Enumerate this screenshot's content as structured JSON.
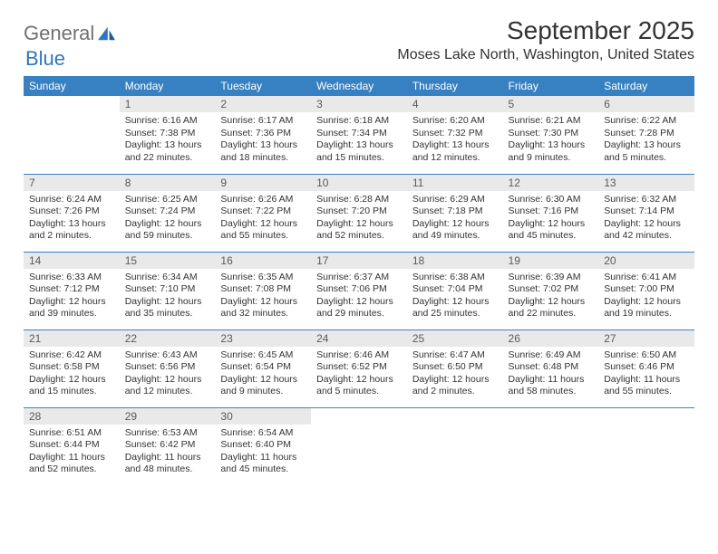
{
  "logo": {
    "word1": "General",
    "word2": "Blue"
  },
  "title": "September 2025",
  "location": "Moses Lake North, Washington, United States",
  "colors": {
    "header_bg": "#3781c2",
    "header_text": "#ffffff",
    "daynum_bg": "#e9e9e9",
    "daynum_text": "#5a5a5a",
    "body_text": "#333333",
    "logo_gray": "#6f7173",
    "logo_blue": "#2f77bb",
    "row_divider": "#3781c2"
  },
  "typography": {
    "title_fontsize": 28,
    "location_fontsize": 16,
    "weekday_fontsize": 12,
    "daynum_fontsize": 12,
    "cell_fontsize": 10.5
  },
  "weekdays": [
    "Sunday",
    "Monday",
    "Tuesday",
    "Wednesday",
    "Thursday",
    "Friday",
    "Saturday"
  ],
  "weeks": [
    [
      null,
      {
        "n": "1",
        "sunrise": "6:16 AM",
        "sunset": "7:38 PM",
        "daylight": "13 hours and 22 minutes."
      },
      {
        "n": "2",
        "sunrise": "6:17 AM",
        "sunset": "7:36 PM",
        "daylight": "13 hours and 18 minutes."
      },
      {
        "n": "3",
        "sunrise": "6:18 AM",
        "sunset": "7:34 PM",
        "daylight": "13 hours and 15 minutes."
      },
      {
        "n": "4",
        "sunrise": "6:20 AM",
        "sunset": "7:32 PM",
        "daylight": "13 hours and 12 minutes."
      },
      {
        "n": "5",
        "sunrise": "6:21 AM",
        "sunset": "7:30 PM",
        "daylight": "13 hours and 9 minutes."
      },
      {
        "n": "6",
        "sunrise": "6:22 AM",
        "sunset": "7:28 PM",
        "daylight": "13 hours and 5 minutes."
      }
    ],
    [
      {
        "n": "7",
        "sunrise": "6:24 AM",
        "sunset": "7:26 PM",
        "daylight": "13 hours and 2 minutes."
      },
      {
        "n": "8",
        "sunrise": "6:25 AM",
        "sunset": "7:24 PM",
        "daylight": "12 hours and 59 minutes."
      },
      {
        "n": "9",
        "sunrise": "6:26 AM",
        "sunset": "7:22 PM",
        "daylight": "12 hours and 55 minutes."
      },
      {
        "n": "10",
        "sunrise": "6:28 AM",
        "sunset": "7:20 PM",
        "daylight": "12 hours and 52 minutes."
      },
      {
        "n": "11",
        "sunrise": "6:29 AM",
        "sunset": "7:18 PM",
        "daylight": "12 hours and 49 minutes."
      },
      {
        "n": "12",
        "sunrise": "6:30 AM",
        "sunset": "7:16 PM",
        "daylight": "12 hours and 45 minutes."
      },
      {
        "n": "13",
        "sunrise": "6:32 AM",
        "sunset": "7:14 PM",
        "daylight": "12 hours and 42 minutes."
      }
    ],
    [
      {
        "n": "14",
        "sunrise": "6:33 AM",
        "sunset": "7:12 PM",
        "daylight": "12 hours and 39 minutes."
      },
      {
        "n": "15",
        "sunrise": "6:34 AM",
        "sunset": "7:10 PM",
        "daylight": "12 hours and 35 minutes."
      },
      {
        "n": "16",
        "sunrise": "6:35 AM",
        "sunset": "7:08 PM",
        "daylight": "12 hours and 32 minutes."
      },
      {
        "n": "17",
        "sunrise": "6:37 AM",
        "sunset": "7:06 PM",
        "daylight": "12 hours and 29 minutes."
      },
      {
        "n": "18",
        "sunrise": "6:38 AM",
        "sunset": "7:04 PM",
        "daylight": "12 hours and 25 minutes."
      },
      {
        "n": "19",
        "sunrise": "6:39 AM",
        "sunset": "7:02 PM",
        "daylight": "12 hours and 22 minutes."
      },
      {
        "n": "20",
        "sunrise": "6:41 AM",
        "sunset": "7:00 PM",
        "daylight": "12 hours and 19 minutes."
      }
    ],
    [
      {
        "n": "21",
        "sunrise": "6:42 AM",
        "sunset": "6:58 PM",
        "daylight": "12 hours and 15 minutes."
      },
      {
        "n": "22",
        "sunrise": "6:43 AM",
        "sunset": "6:56 PM",
        "daylight": "12 hours and 12 minutes."
      },
      {
        "n": "23",
        "sunrise": "6:45 AM",
        "sunset": "6:54 PM",
        "daylight": "12 hours and 9 minutes."
      },
      {
        "n": "24",
        "sunrise": "6:46 AM",
        "sunset": "6:52 PM",
        "daylight": "12 hours and 5 minutes."
      },
      {
        "n": "25",
        "sunrise": "6:47 AM",
        "sunset": "6:50 PM",
        "daylight": "12 hours and 2 minutes."
      },
      {
        "n": "26",
        "sunrise": "6:49 AM",
        "sunset": "6:48 PM",
        "daylight": "11 hours and 58 minutes."
      },
      {
        "n": "27",
        "sunrise": "6:50 AM",
        "sunset": "6:46 PM",
        "daylight": "11 hours and 55 minutes."
      }
    ],
    [
      {
        "n": "28",
        "sunrise": "6:51 AM",
        "sunset": "6:44 PM",
        "daylight": "11 hours and 52 minutes."
      },
      {
        "n": "29",
        "sunrise": "6:53 AM",
        "sunset": "6:42 PM",
        "daylight": "11 hours and 48 minutes."
      },
      {
        "n": "30",
        "sunrise": "6:54 AM",
        "sunset": "6:40 PM",
        "daylight": "11 hours and 45 minutes."
      },
      null,
      null,
      null,
      null
    ]
  ],
  "labels": {
    "sunrise": "Sunrise:",
    "sunset": "Sunset:",
    "daylight": "Daylight:"
  }
}
